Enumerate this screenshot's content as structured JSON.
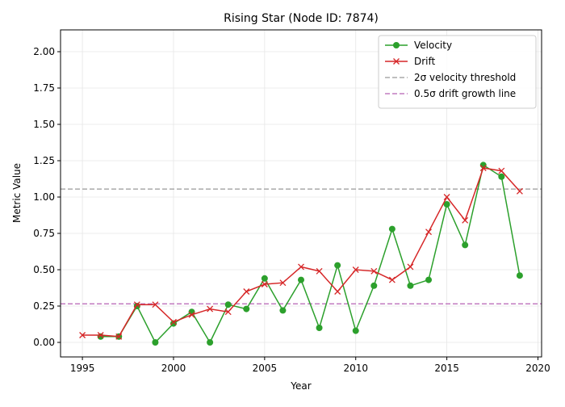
{
  "chart_data": {
    "type": "line",
    "title": "Rising Star (Node ID: 7874)",
    "xlabel": "Year",
    "ylabel": "Metric Value",
    "xlim": [
      1993.8,
      2020.2
    ],
    "ylim": [
      -0.1,
      2.15
    ],
    "x_ticks": [
      1995,
      2000,
      2005,
      2010,
      2015,
      2020
    ],
    "y_ticks": [
      0.0,
      0.25,
      0.5,
      0.75,
      1.0,
      1.25,
      1.5,
      1.75,
      2.0
    ],
    "grid": true,
    "legend_position": "top-right",
    "series": [
      {
        "name": "Velocity",
        "color": "#2ca02c",
        "marker": "circle",
        "x": [
          1996,
          1997,
          1998,
          1999,
          2000,
          2001,
          2002,
          2003,
          2004,
          2005,
          2006,
          2007,
          2008,
          2009,
          2010,
          2011,
          2012,
          2013,
          2014,
          2015,
          2016,
          2017,
          2018,
          2019
        ],
        "y": [
          0.04,
          0.04,
          0.25,
          0.0,
          0.13,
          0.21,
          0.0,
          0.26,
          0.23,
          0.44,
          0.22,
          0.43,
          0.1,
          0.53,
          0.08,
          0.39,
          0.78,
          0.39,
          0.43,
          0.95,
          0.67,
          1.22,
          1.14,
          0.46
        ]
      },
      {
        "name": "Drift",
        "color": "#d62728",
        "marker": "x",
        "x": [
          1995,
          1996,
          1997,
          1998,
          1999,
          2000,
          2001,
          2002,
          2003,
          2004,
          2005,
          2006,
          2007,
          2008,
          2009,
          2010,
          2011,
          2012,
          2013,
          2014,
          2015,
          2016,
          2017,
          2018,
          2019
        ],
        "y": [
          0.05,
          0.05,
          0.04,
          0.26,
          0.26,
          0.14,
          0.19,
          0.23,
          0.21,
          0.35,
          0.4,
          0.41,
          0.52,
          0.49,
          0.35,
          0.5,
          0.49,
          0.43,
          0.52,
          0.76,
          1.0,
          0.84,
          1.2,
          1.18,
          1.04
        ]
      }
    ],
    "reference_lines": [
      {
        "name": "2σ velocity threshold",
        "y": 1.055,
        "color": "#aaaaaa",
        "style": "dashed"
      },
      {
        "name": "0.5σ drift growth line",
        "y": 0.265,
        "color": "#c27bc0",
        "style": "dashed"
      }
    ]
  }
}
